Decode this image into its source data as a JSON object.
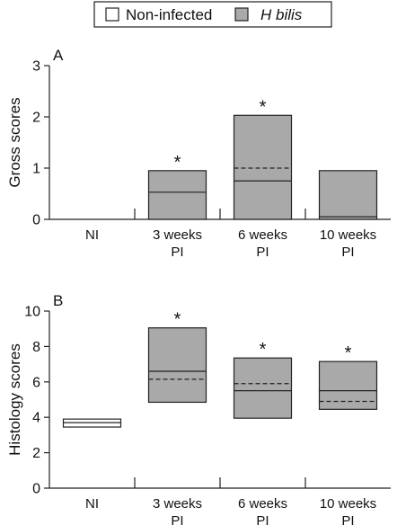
{
  "legend": {
    "entries": [
      {
        "label": "Non-infected",
        "italic": false,
        "color": "#ffffff"
      },
      {
        "label": "H bilis",
        "italic": true,
        "color": "#a9a9a9"
      }
    ]
  },
  "chart_data": [
    {
      "type": "box",
      "panel_label": "A",
      "ylabel": "Gross scores",
      "ylim": [
        0,
        3
      ],
      "yticks": [
        0,
        1,
        2,
        3
      ],
      "categories": [
        {
          "label": [
            "NI"
          ]
        },
        {
          "label": [
            "3 weeks",
            "PI"
          ]
        },
        {
          "label": [
            "6 weeks",
            "PI"
          ]
        },
        {
          "label": [
            "10 weeks",
            "PI"
          ]
        }
      ],
      "boxes": [
        {
          "group": "Non-infected",
          "q1": 0,
          "q3": 0,
          "median": 0,
          "mean": null,
          "significant": false
        },
        {
          "group": "H bilis",
          "q1": 0,
          "q3": 0.95,
          "median": 0.53,
          "mean": null,
          "significant": true
        },
        {
          "group": "H bilis",
          "q1": 0,
          "q3": 2.03,
          "median": 0.75,
          "mean": 1.0,
          "significant": true
        },
        {
          "group": "H bilis",
          "q1": 0,
          "q3": 0.95,
          "median": 0.05,
          "mean": null,
          "significant": false
        }
      ],
      "significance_marker": "*"
    },
    {
      "type": "box",
      "panel_label": "B",
      "ylabel": "Histology scores",
      "ylim": [
        0,
        10
      ],
      "yticks": [
        0,
        2,
        4,
        6,
        8,
        10
      ],
      "categories": [
        {
          "label": [
            "NI"
          ]
        },
        {
          "label": [
            "3 weeks",
            "PI"
          ]
        },
        {
          "label": [
            "6 weeks",
            "PI"
          ]
        },
        {
          "label": [
            "10 weeks",
            "PI"
          ]
        }
      ],
      "boxes": [
        {
          "group": "Non-infected",
          "q1": 3.45,
          "q3": 3.9,
          "median": 3.7,
          "mean": null,
          "significant": false
        },
        {
          "group": "H bilis",
          "q1": 4.85,
          "q3": 9.05,
          "median": 6.6,
          "mean": 6.15,
          "significant": true
        },
        {
          "group": "H bilis",
          "q1": 3.95,
          "q3": 7.35,
          "median": 5.5,
          "mean": 5.9,
          "significant": true
        },
        {
          "group": "H bilis",
          "q1": 4.45,
          "q3": 7.15,
          "median": 5.5,
          "mean": 4.9,
          "significant": true
        }
      ],
      "significance_marker": "*"
    }
  ]
}
